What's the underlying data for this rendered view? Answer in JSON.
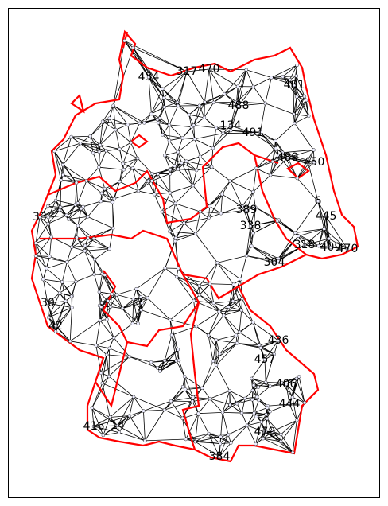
{
  "nodes": [
    {
      "label": "434"
    },
    {
      "label": "317"
    },
    {
      "label": "470"
    },
    {
      "label": "481"
    },
    {
      "label": "488"
    },
    {
      "label": "134"
    },
    {
      "label": "491"
    },
    {
      "label": "489"
    },
    {
      "label": "450"
    },
    {
      "label": "6"
    },
    {
      "label": "445"
    },
    {
      "label": "318"
    },
    {
      "label": "409"
    },
    {
      "label": "470"
    },
    {
      "label": "389"
    },
    {
      "label": "338"
    },
    {
      "label": "304"
    },
    {
      "label": "436"
    },
    {
      "label": "457"
    },
    {
      "label": "406"
    },
    {
      "label": "444"
    },
    {
      "label": "479"
    },
    {
      "label": "384"
    },
    {
      "label": "416"
    },
    {
      "label": "14"
    },
    {
      "label": "33"
    },
    {
      "label": "30"
    },
    {
      "label": "42"
    }
  ]
}
